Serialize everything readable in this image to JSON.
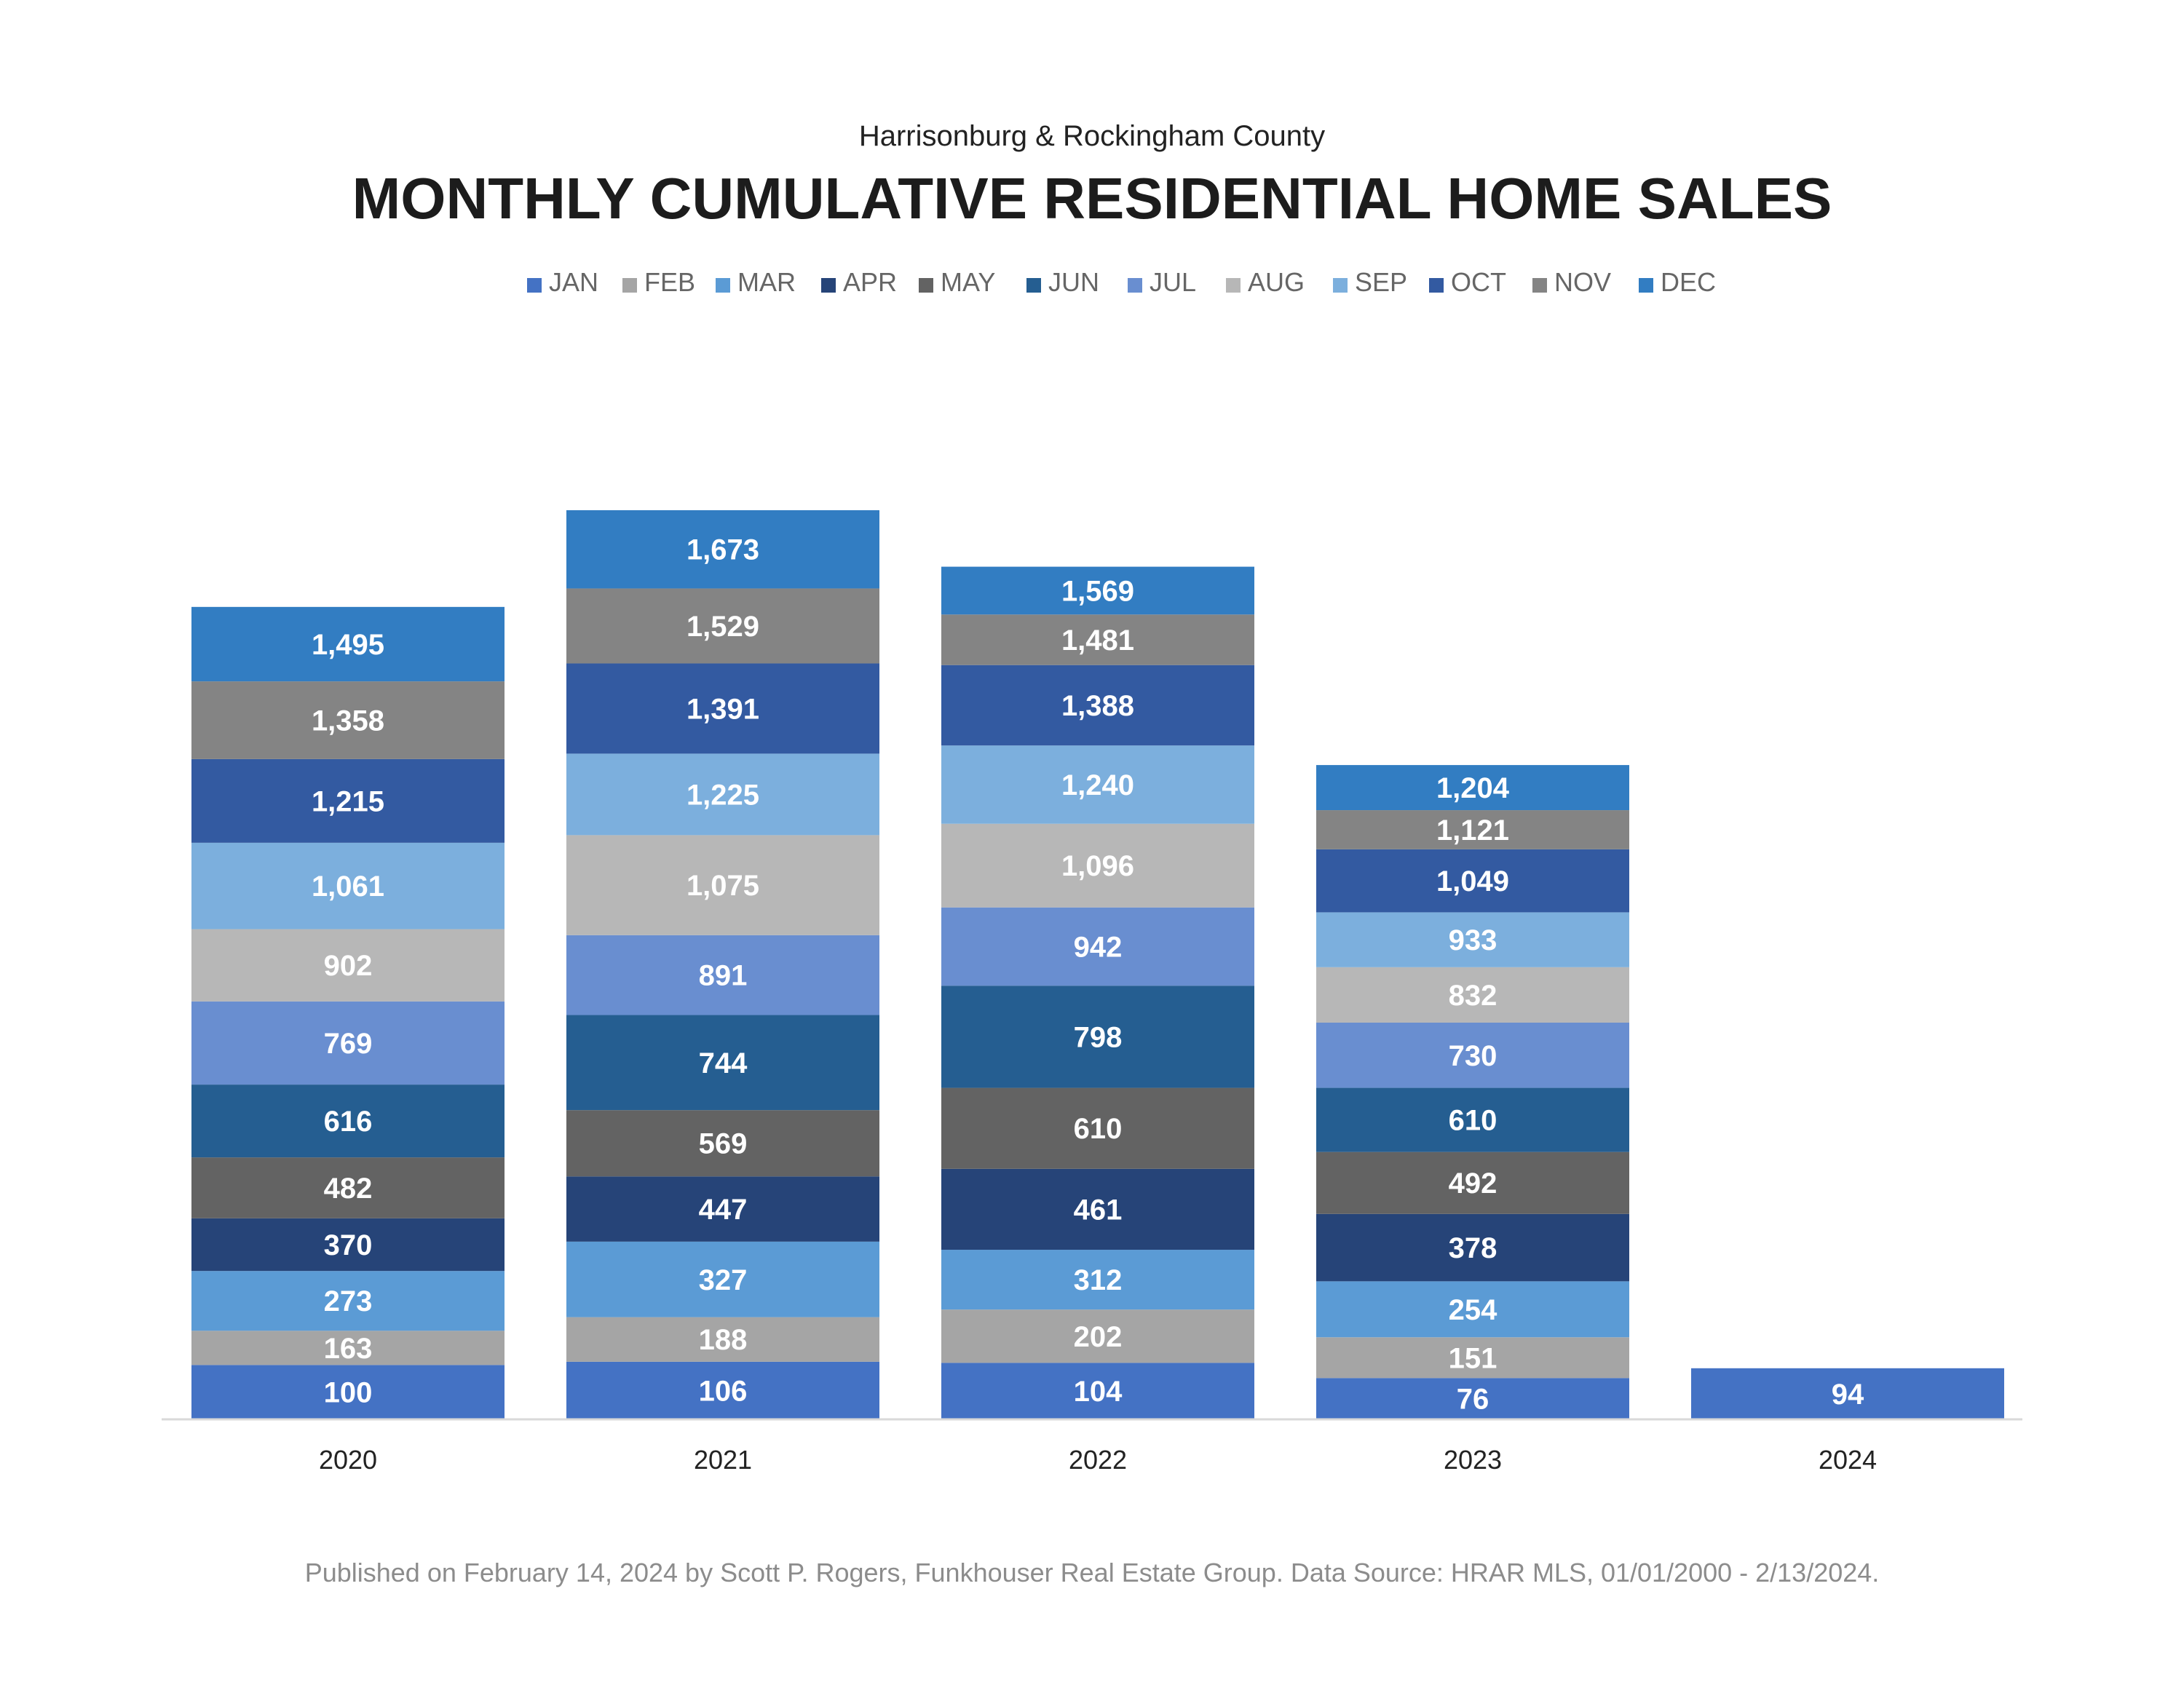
{
  "chart_data": {
    "type": "bar",
    "stacked": true,
    "subtitle": "Harrisonburg & Rockingham County",
    "title": "MONTHLY CUMULATIVE RESIDENTIAL HOME SALES",
    "categories": [
      "2020",
      "2021",
      "2022",
      "2023",
      "2024"
    ],
    "legend_position": "top",
    "series": [
      {
        "name": "JAN",
        "color": "#4472c4",
        "values": [
          100,
          106,
          104,
          76,
          94
        ]
      },
      {
        "name": "FEB",
        "color": "#a5a5a5",
        "values": [
          163,
          188,
          202,
          151,
          null
        ]
      },
      {
        "name": "MAR",
        "color": "#5b9bd5",
        "values": [
          273,
          327,
          312,
          254,
          null
        ]
      },
      {
        "name": "APR",
        "color": "#264478",
        "values": [
          370,
          447,
          461,
          378,
          null
        ]
      },
      {
        "name": "MAY",
        "color": "#636363",
        "values": [
          482,
          569,
          610,
          492,
          null
        ]
      },
      {
        "name": "JUN",
        "color": "#255e91",
        "values": [
          616,
          744,
          798,
          610,
          null
        ]
      },
      {
        "name": "JUL",
        "color": "#698ed0",
        "values": [
          769,
          891,
          942,
          730,
          null
        ]
      },
      {
        "name": "AUG",
        "color": "#b7b7b7",
        "values": [
          902,
          1075,
          1096,
          832,
          null
        ]
      },
      {
        "name": "SEP",
        "color": "#7cafdd",
        "values": [
          1061,
          1225,
          1240,
          933,
          null
        ]
      },
      {
        "name": "OCT",
        "color": "#335aa1",
        "values": [
          1215,
          1391,
          1388,
          1049,
          null
        ]
      },
      {
        "name": "NOV",
        "color": "#848484",
        "values": [
          1358,
          1529,
          1481,
          1121,
          null
        ]
      },
      {
        "name": "DEC",
        "color": "#327dc2",
        "values": [
          1495,
          1673,
          1569,
          1204,
          null
        ]
      }
    ],
    "grid": false,
    "footer": "Published on February 14, 2024 by Scott P. Rogers, Funkhouser Real Estate Group. Data Source: HRAR MLS, 01/01/2000 - 2/13/2024."
  }
}
